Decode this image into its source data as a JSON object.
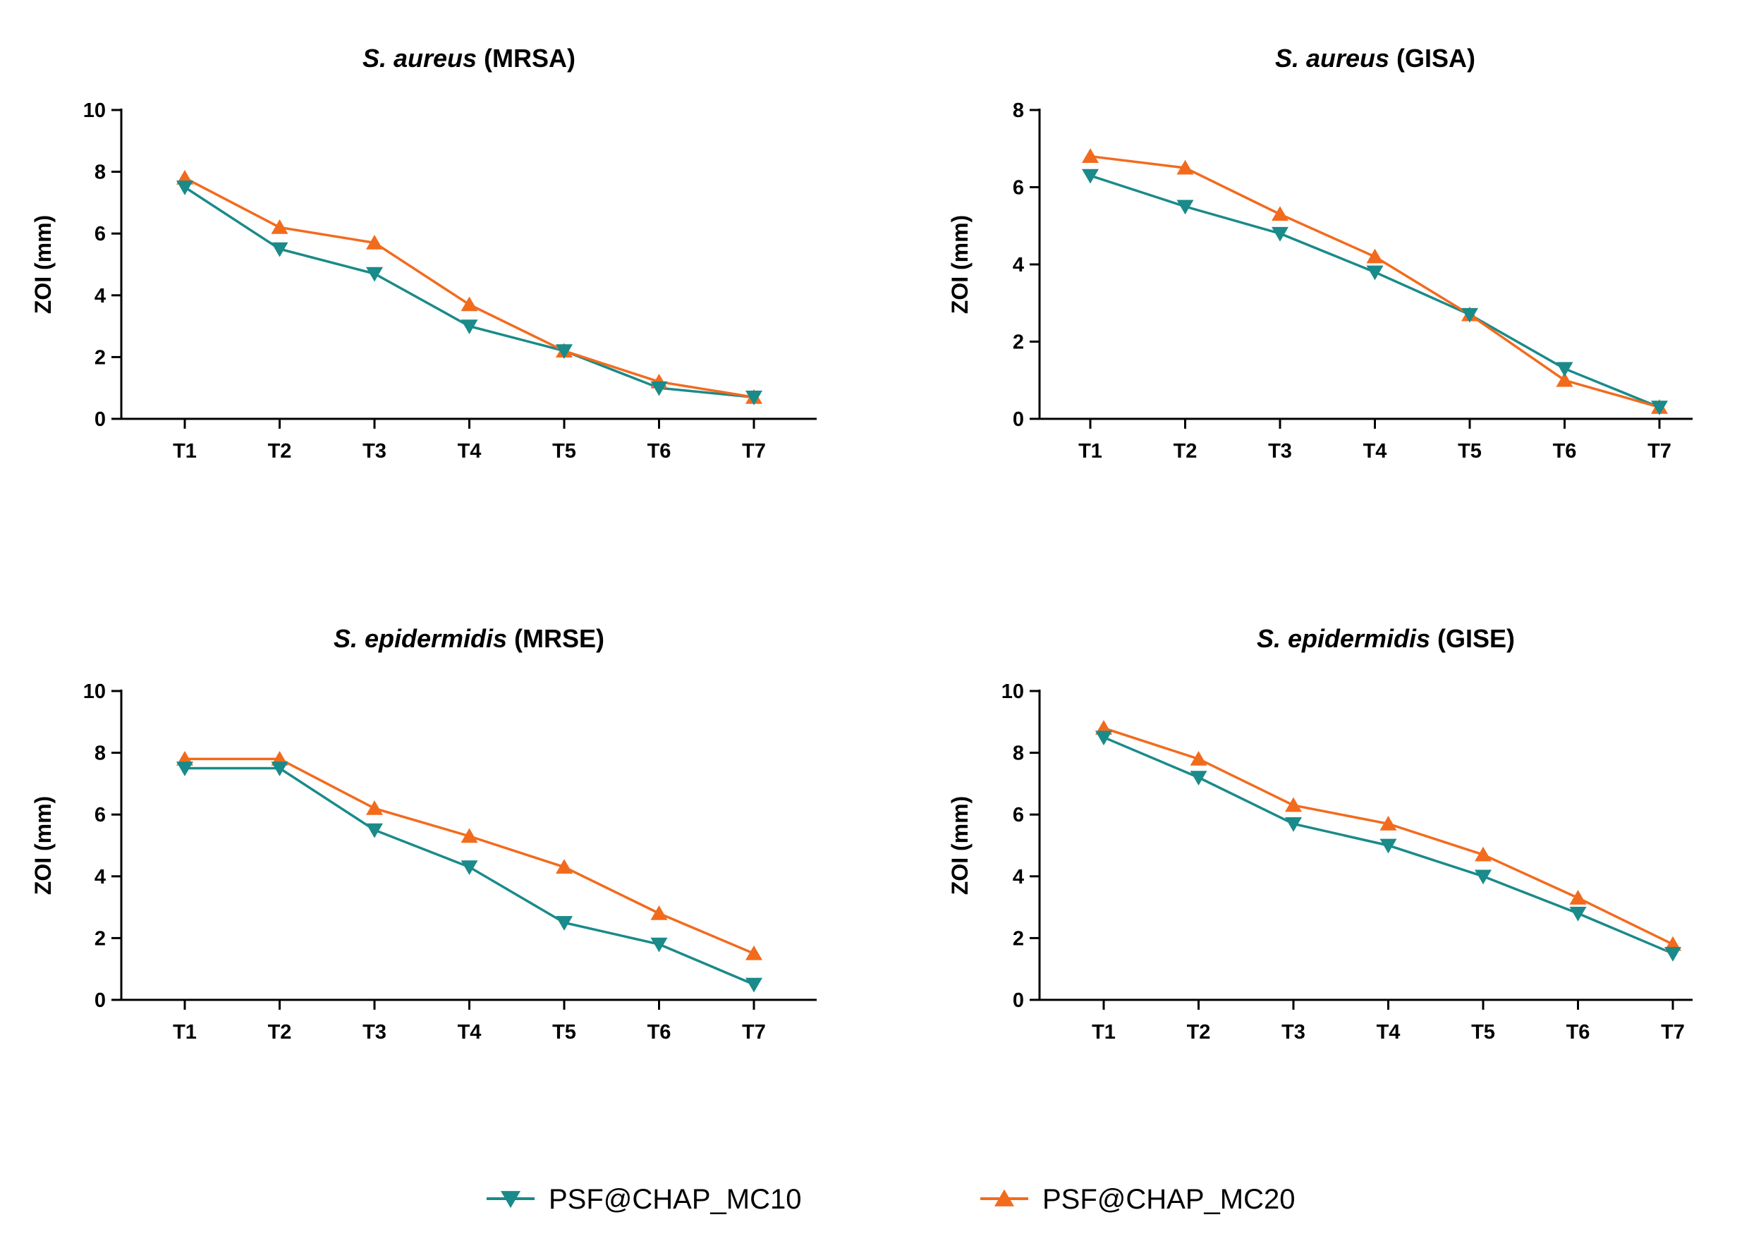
{
  "colors": {
    "mc10": "#1a8a8a",
    "mc20": "#f26b1d",
    "axis": "#000000"
  },
  "legend": [
    {
      "name": "PSF@CHAP_MC10",
      "marker": "triangle-down",
      "color_key": "mc10"
    },
    {
      "name": "PSF@CHAP_MC20",
      "marker": "triangle-up",
      "color_key": "mc20"
    }
  ],
  "chart_data": [
    {
      "type": "line",
      "title_italic": "S. aureus",
      "title_rest": " (MRSA)",
      "xlabel": "",
      "ylabel": "ZOI (mm)",
      "categories": [
        "T1",
        "T2",
        "T3",
        "T4",
        "T5",
        "T6",
        "T7"
      ],
      "ylim": [
        0,
        10
      ],
      "yticks": [
        0,
        2,
        4,
        6,
        8,
        10
      ],
      "series": [
        {
          "name": "PSF@CHAP_MC10",
          "values": [
            7.5,
            5.5,
            4.7,
            3.0,
            2.2,
            1.0,
            0.7
          ]
        },
        {
          "name": "PSF@CHAP_MC20",
          "values": [
            7.8,
            6.2,
            5.7,
            3.7,
            2.2,
            1.2,
            0.7
          ]
        }
      ]
    },
    {
      "type": "line",
      "title_italic": "S. aureus",
      "title_rest": " (GISA)",
      "xlabel": "",
      "ylabel": "ZOI (mm)",
      "categories": [
        "T1",
        "T2",
        "T3",
        "T4",
        "T5",
        "T6",
        "T7"
      ],
      "ylim": [
        0,
        8
      ],
      "yticks": [
        0,
        2,
        4,
        6,
        8
      ],
      "series": [
        {
          "name": "PSF@CHAP_MC10",
          "values": [
            6.3,
            5.5,
            4.8,
            3.8,
            2.7,
            1.3,
            0.3
          ]
        },
        {
          "name": "PSF@CHAP_MC20",
          "values": [
            6.8,
            6.5,
            5.3,
            4.2,
            2.7,
            1.0,
            0.3
          ]
        }
      ]
    },
    {
      "type": "line",
      "title_italic": "S. epidermidis",
      "title_rest": " (MRSE)",
      "xlabel": "",
      "ylabel": "ZOI (mm)",
      "categories": [
        "T1",
        "T2",
        "T3",
        "T4",
        "T5",
        "T6",
        "T7"
      ],
      "ylim": [
        0,
        10
      ],
      "yticks": [
        0,
        2,
        4,
        6,
        8,
        10
      ],
      "series": [
        {
          "name": "PSF@CHAP_MC10",
          "values": [
            7.5,
            7.5,
            5.5,
            4.3,
            2.5,
            1.8,
            0.5
          ]
        },
        {
          "name": "PSF@CHAP_MC20",
          "values": [
            7.8,
            7.8,
            6.2,
            5.3,
            4.3,
            2.8,
            1.5
          ]
        }
      ]
    },
    {
      "type": "line",
      "title_italic": "S. epidermidis",
      "title_rest": " (GISE)",
      "xlabel": "",
      "ylabel": "ZOI (mm)",
      "categories": [
        "T1",
        "T2",
        "T3",
        "T4",
        "T5",
        "T6",
        "T7"
      ],
      "ylim": [
        0,
        10
      ],
      "yticks": [
        0,
        2,
        4,
        6,
        8,
        10
      ],
      "series": [
        {
          "name": "PSF@CHAP_MC10",
          "values": [
            8.5,
            7.2,
            5.7,
            5.0,
            4.0,
            2.8,
            1.5
          ]
        },
        {
          "name": "PSF@CHAP_MC20",
          "values": [
            8.8,
            7.8,
            6.3,
            5.7,
            4.7,
            3.3,
            1.8
          ]
        }
      ]
    }
  ]
}
